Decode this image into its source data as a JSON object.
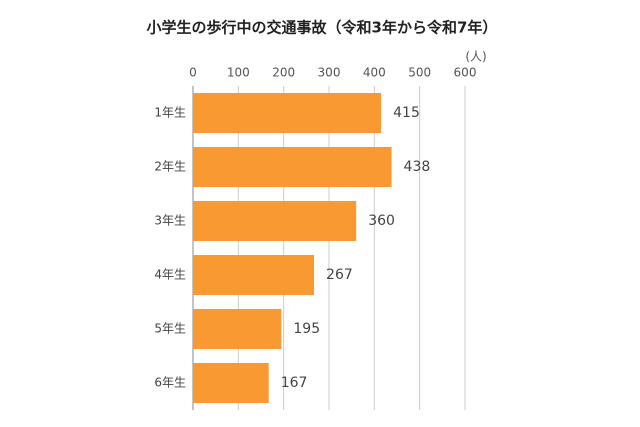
{
  "chart_data": {
    "type": "bar",
    "orientation": "horizontal",
    "title": "小学生の歩行中の交通事故（令和3年から令和7年）",
    "unit": "(人)",
    "categories": [
      "1年生",
      "2年生",
      "3年生",
      "4年生",
      "5年生",
      "6年生"
    ],
    "values": [
      415,
      438,
      360,
      267,
      195,
      167
    ],
    "color": "#f89a31",
    "xlim": [
      0,
      600
    ],
    "xticks": [
      0,
      100,
      200,
      300,
      400,
      500,
      600
    ],
    "grid": true
  }
}
